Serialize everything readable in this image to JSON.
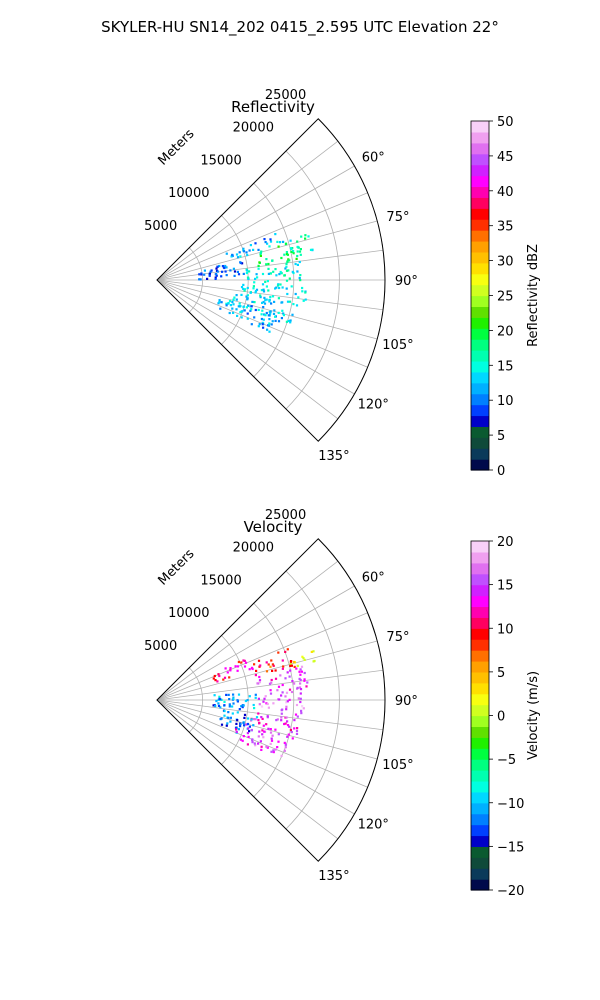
{
  "figure": {
    "suptitle": "SKYLER-HU  SN14_202  0415_2.595 UTC Elevation 22°"
  },
  "chart_data": [
    {
      "type": "polar-sector",
      "title": "Reflectivity",
      "range_axis_label": "Meters",
      "range_ticks": [
        5000,
        10000,
        15000,
        20000,
        25000
      ],
      "range_tick_labels": [
        "5000",
        "10000",
        "15000",
        "20000",
        "25000"
      ],
      "azimuth_ticks": [
        60,
        75,
        90,
        105,
        120,
        135
      ],
      "azimuth_tick_labels": [
        "60°",
        "75°",
        "90°",
        "105°",
        "120°",
        "135°"
      ],
      "azimuth_range": [
        45,
        135
      ],
      "range_max": 25000,
      "grid": true,
      "field": "Reflectivity",
      "echoes": [
        {
          "az": [
            72,
            79
          ],
          "r": [
            14000,
            17500
          ],
          "value": 16
        },
        {
          "az": [
            68,
            74
          ],
          "r": [
            8000,
            14500
          ],
          "value": 12
        },
        {
          "az": [
            74,
            82
          ],
          "r": [
            11000,
            16500
          ],
          "value": 18
        },
        {
          "az": [
            82,
            92
          ],
          "r": [
            9500,
            16000
          ],
          "value": 15
        },
        {
          "az": [
            92,
            100
          ],
          "r": [
            9000,
            16500
          ],
          "value": 14
        },
        {
          "az": [
            98,
            108
          ],
          "r": [
            8000,
            15500
          ],
          "value": 13
        },
        {
          "az": [
            105,
            115
          ],
          "r": [
            7000,
            14500
          ],
          "value": 12
        },
        {
          "az": [
            76,
            88
          ],
          "r": [
            4500,
            9500
          ],
          "value": 9
        }
      ],
      "colorbar": {
        "label": "Reflectivity dBZ",
        "range": [
          0,
          50
        ],
        "ticks": [
          0,
          5,
          10,
          15,
          20,
          25,
          30,
          35,
          40,
          45,
          50
        ],
        "tick_labels": [
          "0",
          "5",
          "10",
          "15",
          "20",
          "25",
          "30",
          "35",
          "40",
          "45",
          "50"
        ],
        "colors": [
          "#000a4b",
          "#0a3a5a",
          "#0f4a3a",
          "#0a5a30",
          "#0000c8",
          "#0040ff",
          "#0080ff",
          "#00b0ff",
          "#00d8ff",
          "#00ffe0",
          "#00ffb0",
          "#00ff80",
          "#00ff40",
          "#20f000",
          "#60e000",
          "#a0ff20",
          "#d0ff20",
          "#f8ff10",
          "#ffe000",
          "#ffc000",
          "#ffa000",
          "#ff7000",
          "#ff3000",
          "#ff0000",
          "#ff0060",
          "#ff00b0",
          "#ff00ff",
          "#d020ff",
          "#c050ff",
          "#e070f0",
          "#f0a0f0",
          "#f8d0f8"
        ]
      }
    },
    {
      "type": "polar-sector",
      "title": "Velocity",
      "range_axis_label": "Meters",
      "range_ticks": [
        5000,
        10000,
        15000,
        20000,
        25000
      ],
      "range_tick_labels": [
        "5000",
        "10000",
        "15000",
        "20000",
        "25000"
      ],
      "azimuth_ticks": [
        60,
        75,
        90,
        105,
        120,
        135
      ],
      "azimuth_tick_labels": [
        "60°",
        "75°",
        "90°",
        "105°",
        "120°",
        "135°"
      ],
      "azimuth_range": [
        45,
        135
      ],
      "range_max": 25000,
      "grid": true,
      "field": "Velocity",
      "echoes": [
        {
          "az": [
            72,
            77
          ],
          "r": [
            15000,
            18000
          ],
          "value": 2
        },
        {
          "az": [
            68,
            76
          ],
          "r": [
            11000,
            15500
          ],
          "value": 9
        },
        {
          "az": [
            64,
            72
          ],
          "r": [
            6500,
            11000
          ],
          "value": 11
        },
        {
          "az": [
            76,
            86
          ],
          "r": [
            11000,
            16500
          ],
          "value": 15
        },
        {
          "az": [
            84,
            96
          ],
          "r": [
            6000,
            11000
          ],
          "value": -11
        },
        {
          "az": [
            86,
            96
          ],
          "r": [
            11000,
            16000
          ],
          "value": 16
        },
        {
          "az": [
            96,
            106
          ],
          "r": [
            10000,
            16000
          ],
          "value": 14
        },
        {
          "az": [
            98,
            112
          ],
          "r": [
            7000,
            11000
          ],
          "value": -12
        },
        {
          "az": [
            106,
            116
          ],
          "r": [
            9000,
            15000
          ],
          "value": 15
        }
      ],
      "colorbar": {
        "label": "Velocity (m/s)",
        "range": [
          -20,
          20
        ],
        "ticks": [
          -20,
          -15,
          -10,
          -5,
          0,
          5,
          10,
          15,
          20
        ],
        "tick_labels": [
          "−20",
          "−15",
          "−10",
          "−5",
          "0",
          "5",
          "10",
          "15",
          "20"
        ],
        "colors": [
          "#000a4b",
          "#0a3a5a",
          "#0f4a3a",
          "#0a5a30",
          "#0000c8",
          "#0040ff",
          "#0080ff",
          "#00b0ff",
          "#00d8ff",
          "#00ffe0",
          "#00ffb0",
          "#00ff80",
          "#00ff40",
          "#20f000",
          "#60e000",
          "#a0ff20",
          "#d0ff20",
          "#f8ff10",
          "#ffe000",
          "#ffc000",
          "#ffa000",
          "#ff7000",
          "#ff3000",
          "#ff0000",
          "#ff0060",
          "#ff00b0",
          "#ff00ff",
          "#d020ff",
          "#c050ff",
          "#e070f0",
          "#f0a0f0",
          "#f8d0f8"
        ]
      }
    }
  ]
}
